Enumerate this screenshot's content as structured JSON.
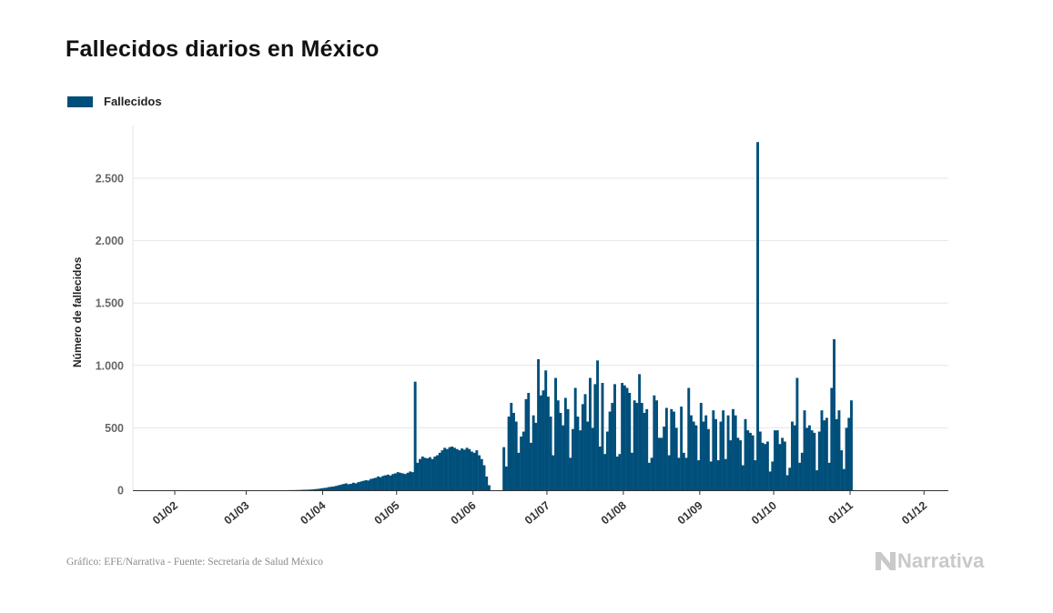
{
  "title": "Fallecidos diarios en México",
  "footer": "Gráfico: EFE/Narrativa - Fuente: Secretaría de Salud México",
  "logo": {
    "text": "Narrativa",
    "icon": "narrativa-logo-icon",
    "color": "#c9c9c9"
  },
  "colors": {
    "bar": "#004f7a",
    "grid": "#e6e6e6",
    "axis": "#333333"
  },
  "chart_data": {
    "type": "bar",
    "title": "Fallecidos diarios en México",
    "ylabel": "Número de fallecidos",
    "xlabel": "",
    "legend": {
      "position": "top-left",
      "entries": [
        "Fallecidos"
      ]
    },
    "grid": true,
    "ylim": [
      0,
      2900
    ],
    "yticks": [
      0,
      500,
      1000,
      1500,
      2000,
      2500
    ],
    "ytick_labels": [
      "0",
      "500",
      "1.000",
      "1.500",
      "2.000",
      "2.500"
    ],
    "xticks": [
      "01/02",
      "01/03",
      "01/04",
      "01/05",
      "01/06",
      "01/07",
      "01/08",
      "01/09",
      "01/10",
      "01/11",
      "01/12"
    ],
    "x_start": "2020-01-15",
    "series": [
      {
        "name": "Fallecidos",
        "start_date": "2020-03-18",
        "values": [
          1,
          1,
          1,
          2,
          2,
          3,
          4,
          4,
          5,
          6,
          8,
          10,
          12,
          15,
          18,
          20,
          25,
          28,
          30,
          35,
          40,
          45,
          50,
          55,
          48,
          52,
          60,
          55,
          65,
          70,
          75,
          80,
          78,
          90,
          95,
          100,
          110,
          105,
          115,
          120,
          125,
          118,
          130,
          135,
          145,
          140,
          135,
          130,
          140,
          150,
          145,
          870,
          220,
          250,
          270,
          260,
          255,
          265,
          250,
          270,
          280,
          300,
          320,
          340,
          330,
          345,
          350,
          340,
          330,
          320,
          335,
          325,
          340,
          330,
          310,
          300,
          320,
          280,
          250,
          200,
          110,
          40,
          0,
          0,
          0,
          0,
          0,
          345,
          190,
          590,
          700,
          620,
          550,
          300,
          430,
          470,
          730,
          780,
          380,
          600,
          540,
          1050,
          760,
          800,
          960,
          750,
          590,
          280,
          900,
          720,
          620,
          520,
          740,
          650,
          260,
          490,
          820,
          590,
          480,
          690,
          770,
          550,
          900,
          500,
          850,
          1040,
          350,
          860,
          290,
          470,
          630,
          700,
          850,
          270,
          290,
          860,
          840,
          820,
          780,
          300,
          720,
          700,
          930,
          700,
          620,
          650,
          220,
          260,
          760,
          720,
          420,
          420,
          510,
          660,
          280,
          650,
          630,
          500,
          260,
          670,
          300,
          260,
          820,
          600,
          550,
          520,
          240,
          700,
          550,
          600,
          490,
          230,
          640,
          570,
          240,
          550,
          640,
          250,
          600,
          400,
          650,
          600,
          420,
          400,
          200,
          570,
          480,
          460,
          440,
          240,
          2790,
          470,
          380,
          370,
          390,
          150,
          230,
          480,
          480,
          370,
          420,
          390,
          120,
          180,
          550,
          520,
          900,
          220,
          300,
          640,
          500,
          520,
          480,
          460,
          160,
          470,
          640,
          560,
          580,
          220,
          820,
          1210,
          570,
          640,
          320,
          170,
          500,
          580,
          720
        ]
      }
    ]
  }
}
